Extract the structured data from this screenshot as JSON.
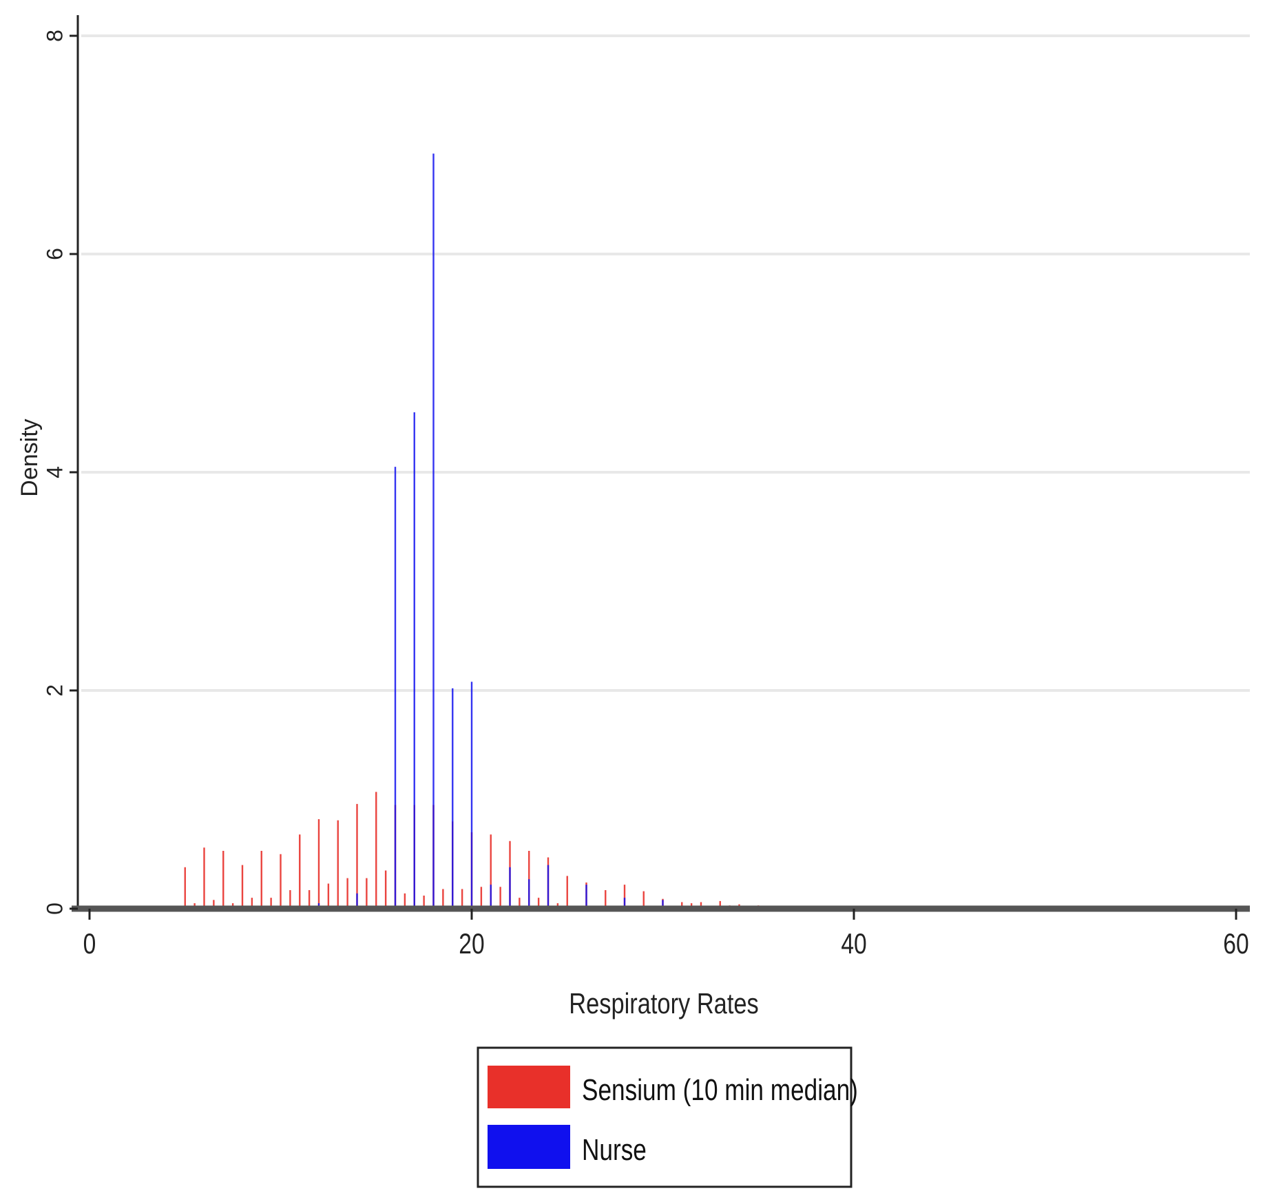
{
  "chart_data": {
    "type": "bar",
    "title": "",
    "xlabel": "Respiratory Rates",
    "ylabel": "Density",
    "xlim": [
      0,
      60
    ],
    "ylim": [
      0,
      8
    ],
    "xticks": [
      0,
      20,
      40,
      60
    ],
    "yticks": [
      0,
      2,
      4,
      6,
      8
    ],
    "xtick_labels": [
      "0",
      "20",
      "40",
      "60"
    ],
    "ytick_labels": [
      "0",
      "2",
      "4",
      "6",
      "8"
    ],
    "grid": "horizontal",
    "legend_position": "bottom-center",
    "series": [
      {
        "name": "Sensium (10 min median)",
        "color": "#e8302a",
        "x": [
          5,
          5.5,
          6,
          6.5,
          7,
          7.5,
          8,
          8.5,
          9,
          9.5,
          10,
          10.5,
          11,
          11.5,
          12,
          12.5,
          13,
          13.5,
          14,
          14.5,
          15,
          15.5,
          16,
          16.5,
          17,
          17.5,
          18,
          18.5,
          19,
          19.5,
          20,
          20.5,
          21,
          21.5,
          22,
          22.5,
          23,
          23.5,
          24,
          24.5,
          25,
          26,
          27,
          28,
          29,
          30,
          31,
          31.5,
          32,
          33,
          33.5,
          34,
          35
        ],
        "values": [
          0.38,
          0.05,
          0.56,
          0.08,
          0.53,
          0.05,
          0.4,
          0.1,
          0.53,
          0.1,
          0.5,
          0.17,
          0.68,
          0.17,
          0.82,
          0.23,
          0.81,
          0.28,
          0.96,
          0.28,
          1.07,
          0.35,
          0.95,
          0.14,
          0.95,
          0.12,
          0.95,
          0.18,
          0.8,
          0.18,
          0.7,
          0.2,
          0.68,
          0.2,
          0.62,
          0.1,
          0.53,
          0.1,
          0.47,
          0.05,
          0.3,
          0.24,
          0.17,
          0.22,
          0.16,
          0.09,
          0.06,
          0.05,
          0.06,
          0.07,
          0.03,
          0.04,
          0.03
        ]
      },
      {
        "name": "Nurse",
        "color": "#1010ee",
        "x": [
          12,
          14,
          16,
          17,
          18,
          19,
          20,
          21,
          22,
          23,
          24,
          26,
          28,
          30
        ],
        "values": [
          0.05,
          0.14,
          4.05,
          4.55,
          6.92,
          2.02,
          2.08,
          0.22,
          0.38,
          0.27,
          0.4,
          0.22,
          0.1,
          0.08
        ]
      }
    ]
  }
}
